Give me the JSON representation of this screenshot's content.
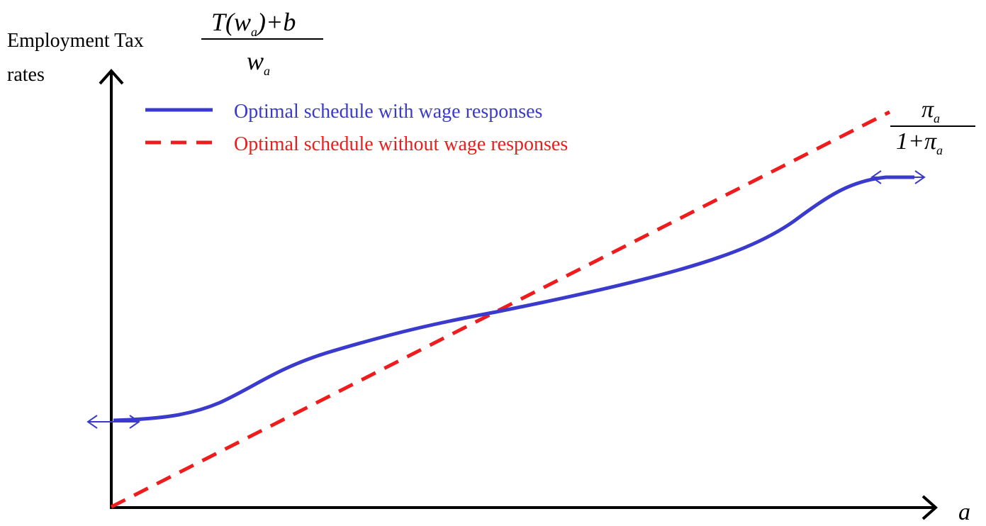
{
  "y_axis_label": [
    "Employment Tax",
    "rates"
  ],
  "y_formula": {
    "numerator": [
      "T(w",
      "a",
      ")+b"
    ],
    "denominator": [
      "w",
      "a"
    ]
  },
  "end_formula": {
    "numerator": [
      "π",
      "a"
    ],
    "denominator": [
      "1+π",
      "a"
    ]
  },
  "legend": [
    {
      "label": "Optimal schedule with wage responses",
      "color": "#3a3acd"
    },
    {
      "label": "Optimal schedule without wage responses",
      "color": "#ee1c1c"
    }
  ],
  "x_axis_label": "a"
}
